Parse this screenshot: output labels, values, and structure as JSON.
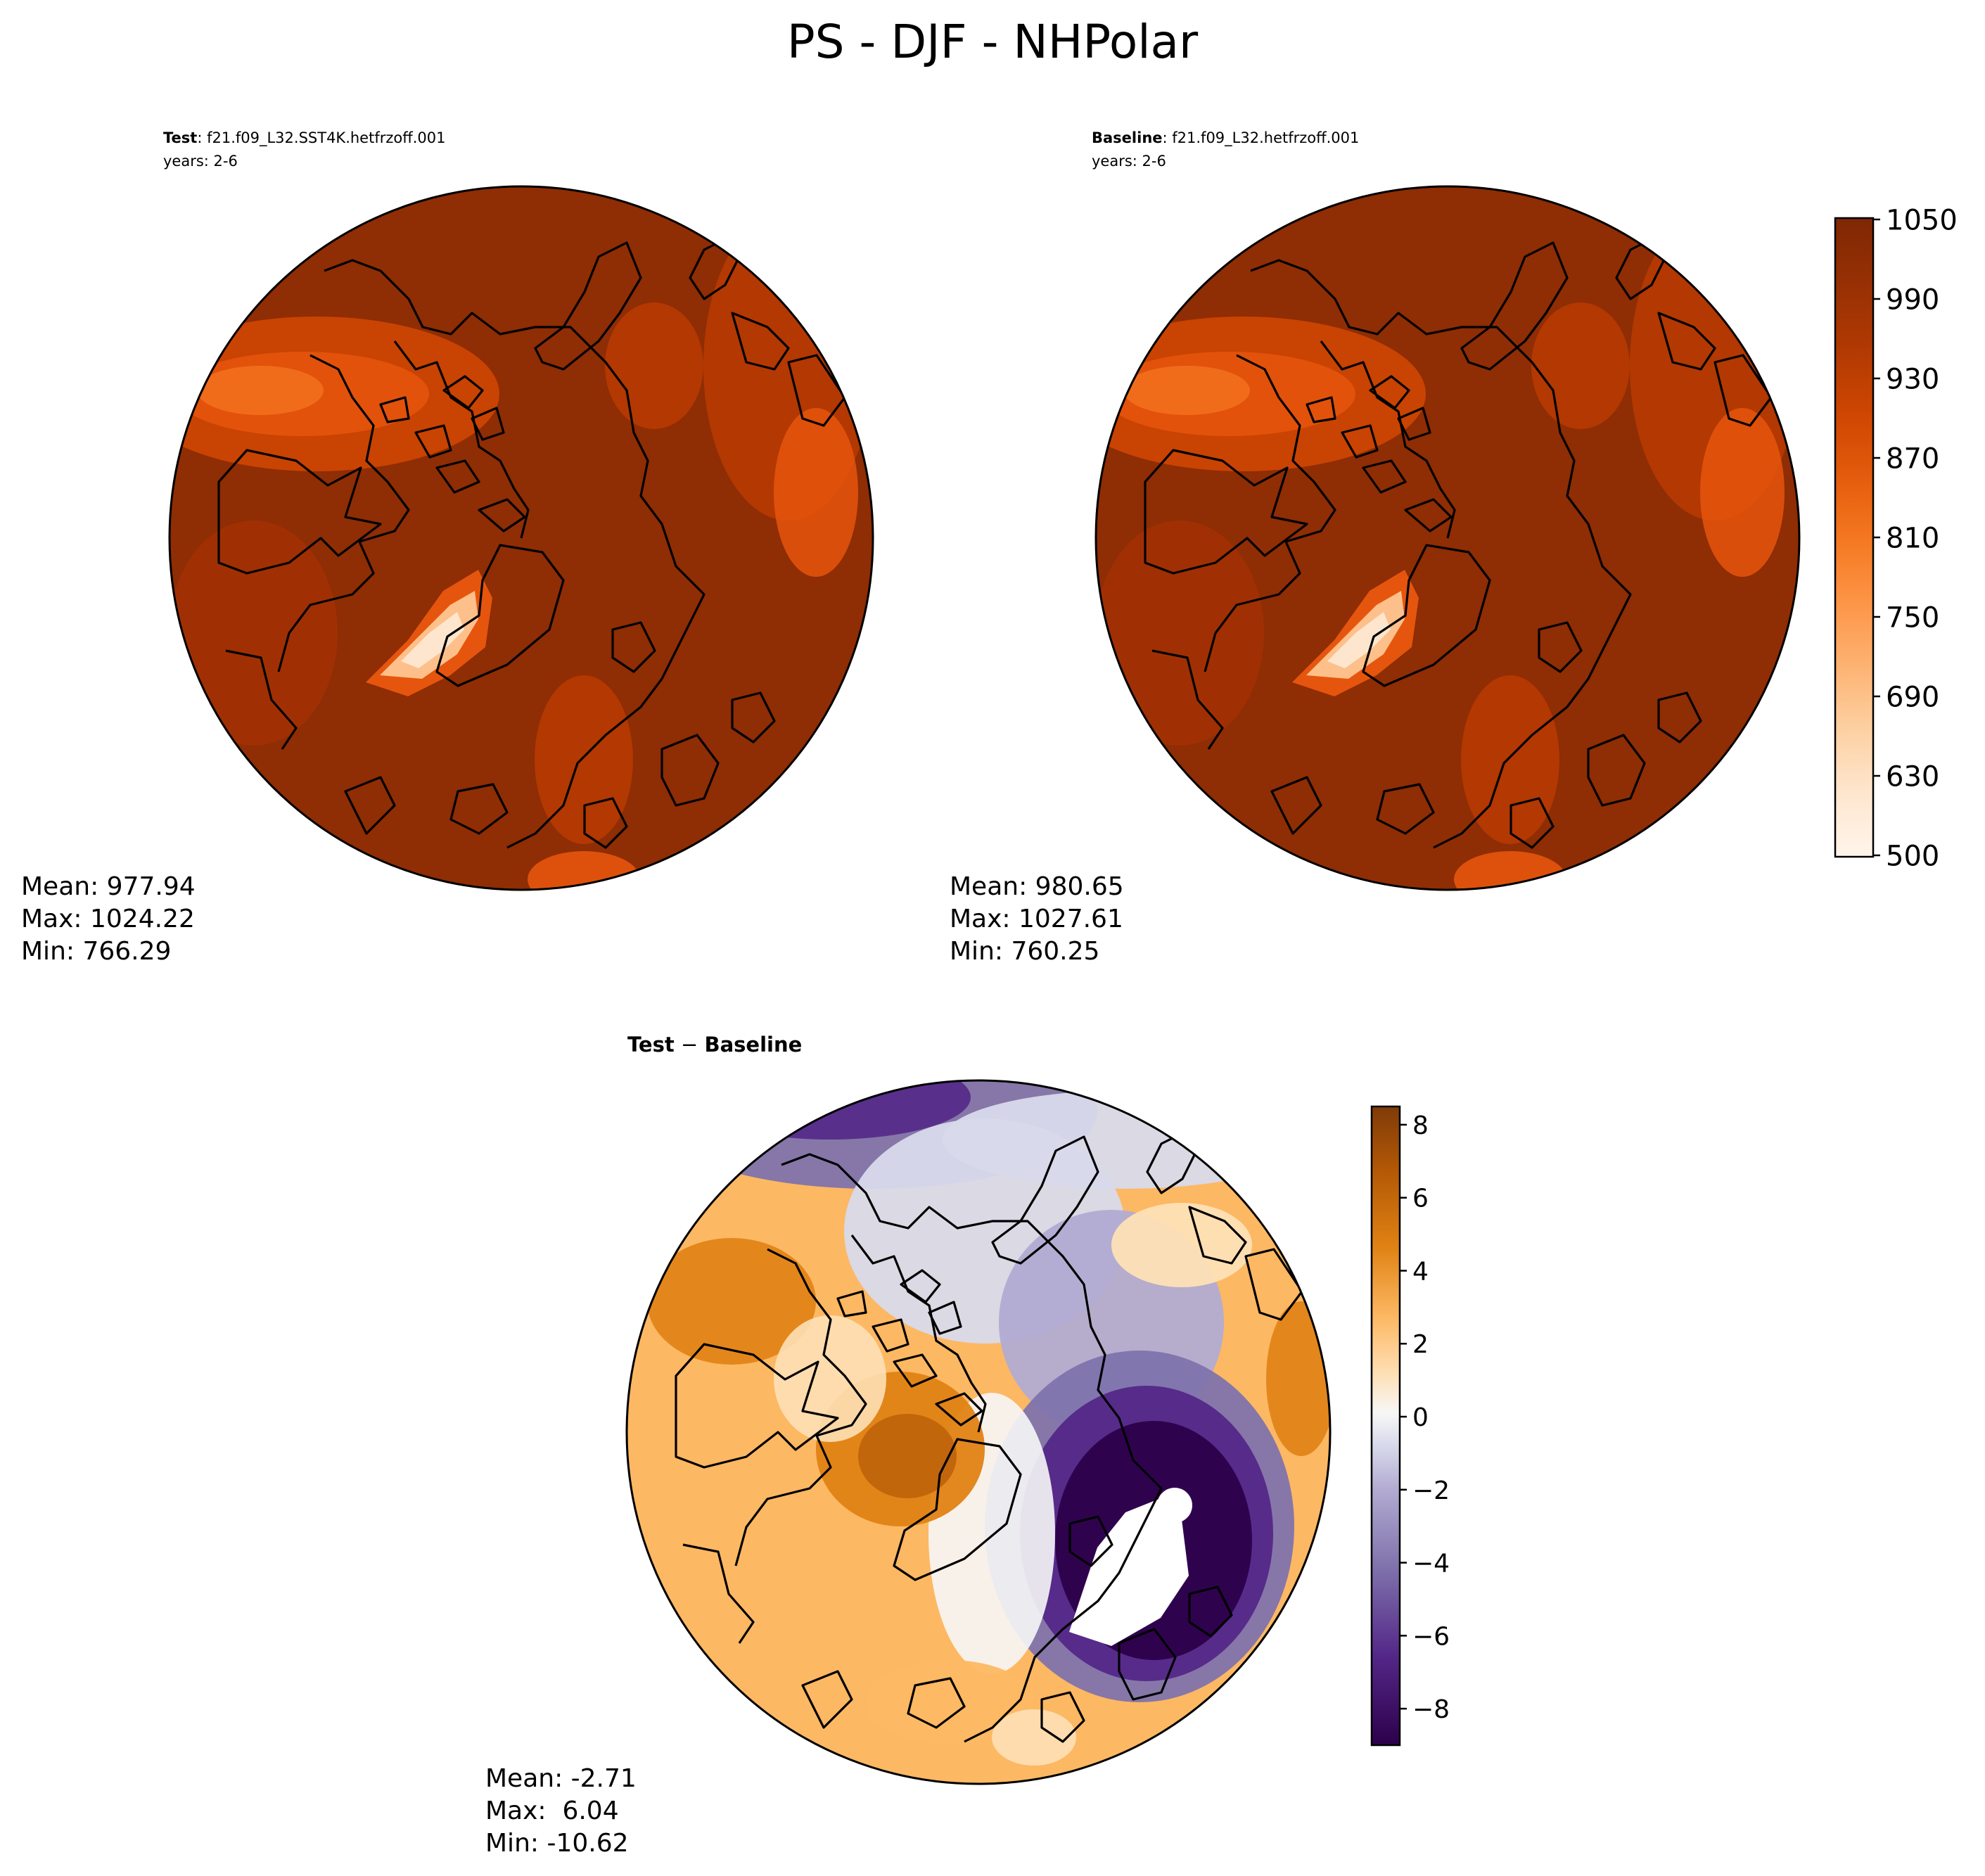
{
  "figure": {
    "title": "PS - DJF - NHPolar"
  },
  "panels": {
    "test": {
      "label_bold": "Test",
      "case_name": ": f21.f09_L32.SST4K.hetfrzoff.001",
      "years": "years: 2-6",
      "stats": {
        "mean": "Mean: 977.94",
        "max": "Max: 1024.22",
        "min": "Min: 766.29"
      }
    },
    "baseline": {
      "label_bold": "Baseline",
      "case_name": ": f21.f09_L32.hetfrzoff.001",
      "years": "years: 2-6",
      "stats": {
        "mean": "Mean: 980.65",
        "max": "Max: 1027.61",
        "min": "Min: 760.25"
      }
    },
    "diff": {
      "title_test": "Test",
      "title_op": " − ",
      "title_baseline": "Baseline",
      "stats": {
        "mean": "Mean: -2.71",
        "max": "Max:  6.04",
        "min": "Min: -10.62"
      }
    }
  },
  "colorbars": {
    "main": {
      "colormap": "Oranges",
      "ticks": [
        "1050",
        "990",
        "930",
        "870",
        "810",
        "750",
        "690",
        "630",
        "500"
      ],
      "colors": [
        "#fff5eb",
        "#fee6ce",
        "#fdd5ab",
        "#fdc08b",
        "#fda762",
        "#fd8e3d",
        "#f4731f",
        "#e6550d",
        "#d04401",
        "#b73a02",
        "#a33103",
        "#8f2d04",
        "#7f2704"
      ]
    },
    "diff": {
      "colormap": "PuOr_r",
      "range": [
        -9,
        8.5
      ],
      "ticks": [
        "8",
        "6",
        "4",
        "2",
        "0",
        "−2",
        "−4",
        "−6",
        "−8"
      ],
      "tick_values": [
        8,
        6,
        4,
        2,
        0,
        -2,
        -4,
        -6,
        -8
      ],
      "colors": [
        "#2d004b",
        "#542788",
        "#8073ac",
        "#b2abd2",
        "#d8daeb",
        "#f7f7f7",
        "#fee0b6",
        "#fdb863",
        "#e08214",
        "#b35806",
        "#7f3b08"
      ]
    }
  }
}
